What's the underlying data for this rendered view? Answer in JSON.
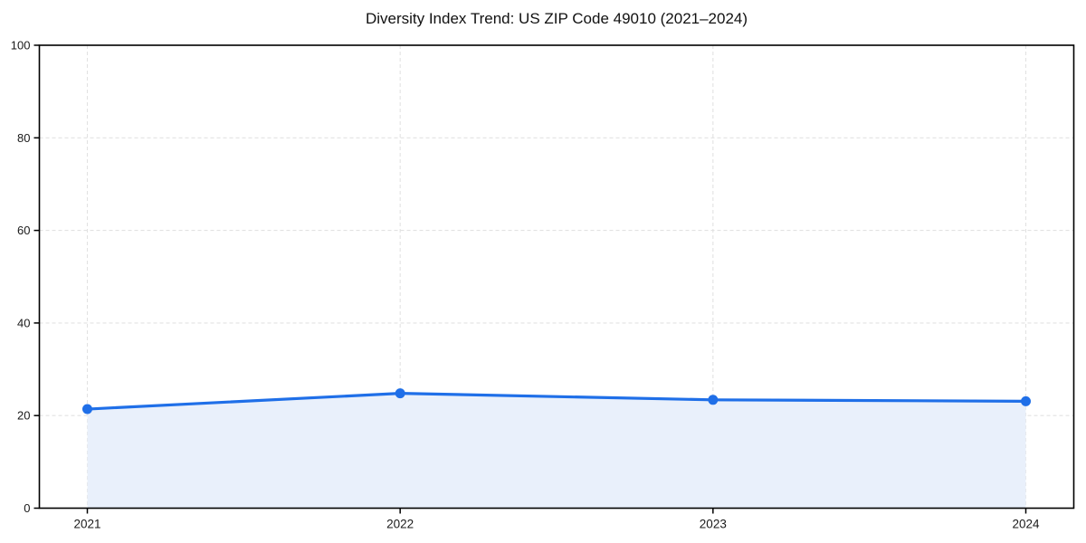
{
  "chart_data": {
    "type": "area",
    "title": "Diversity Index Trend: US ZIP Code 49010 (2021–2024)",
    "series_name": "Diversity Index",
    "x": [
      2021,
      2022,
      2023,
      2024
    ],
    "values": [
      21.4,
      24.8,
      23.4,
      23.1
    ],
    "categories": [
      "2021",
      "2022",
      "2023",
      "2024"
    ],
    "xlabel": "",
    "ylabel": "",
    "ylim": [
      0,
      100
    ],
    "yticks": [
      0,
      20,
      40,
      60,
      80,
      100
    ],
    "xtick_labels": [
      "2021",
      "2022",
      "2023",
      "2024"
    ],
    "grid": true,
    "grid_style": "dashed",
    "legend_position": "none",
    "marker": "circle",
    "fill_to_zero": true
  },
  "colors": {
    "line": "#1f6fe8",
    "marker": "#1f6fe8",
    "area_fill": "#e9f0fb",
    "grid": "#e2e2e2",
    "axis": "#000000",
    "tick_text": "#1a1a1a",
    "title_text": "#111111",
    "background": "#ffffff"
  }
}
